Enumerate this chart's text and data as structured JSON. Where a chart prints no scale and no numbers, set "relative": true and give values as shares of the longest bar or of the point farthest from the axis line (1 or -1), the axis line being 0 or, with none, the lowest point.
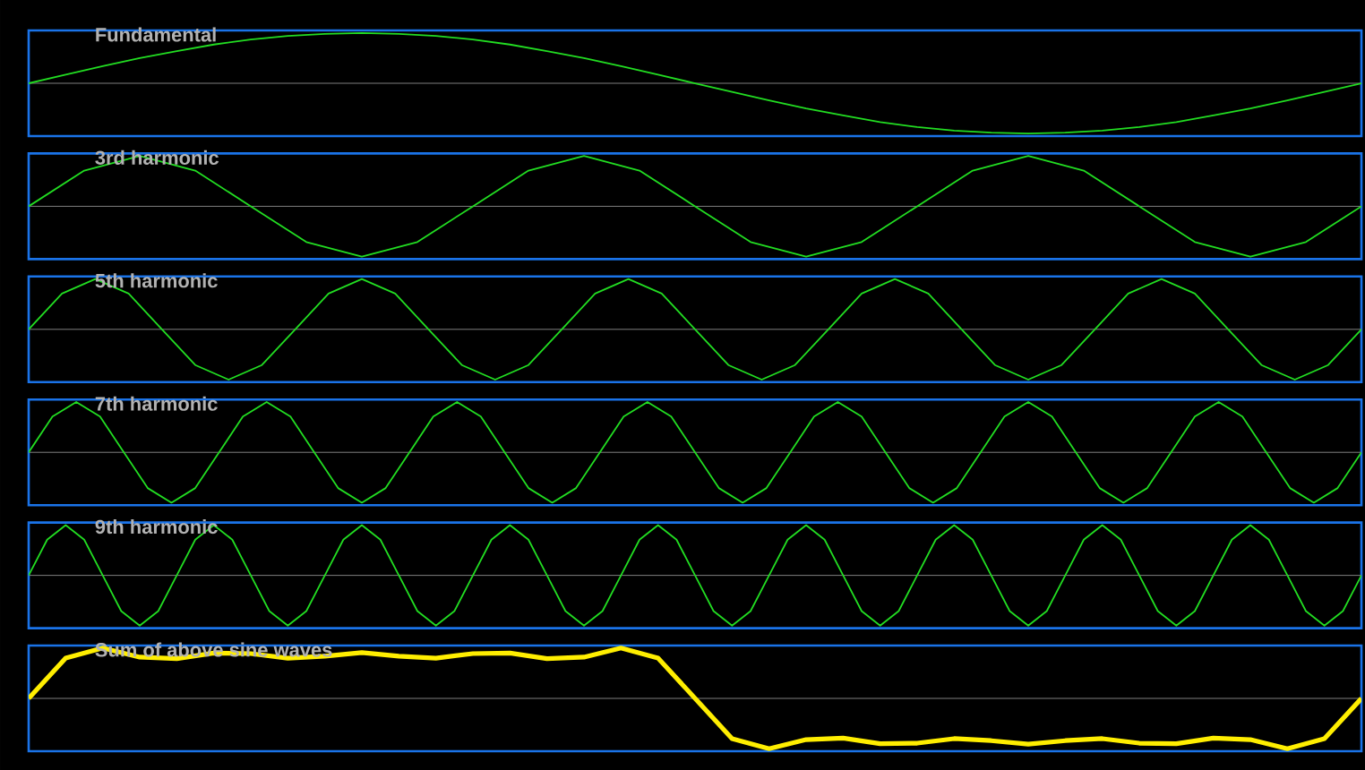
{
  "chart_data": [
    {
      "type": "line",
      "title": "Fundamental",
      "relative": true,
      "categories": [
        null,
        null,
        null,
        null,
        null,
        null,
        null,
        null,
        null,
        null,
        null,
        null,
        null,
        null,
        null,
        null,
        null,
        null,
        null,
        null,
        null,
        null,
        null,
        null,
        null,
        null,
        null,
        null,
        null,
        null,
        null,
        null,
        null,
        null,
        null,
        null,
        null
      ],
      "series": [
        {
          "color": "#22dd22",
          "values": [
            0,
            0.17,
            0.34,
            0.5,
            0.64,
            0.77,
            0.87,
            0.94,
            0.98,
            1,
            0.98,
            0.94,
            0.87,
            0.77,
            0.64,
            0.5,
            0.34,
            0.17,
            0,
            -0.17,
            -0.34,
            -0.5,
            -0.64,
            -0.77,
            -0.87,
            -0.94,
            -0.98,
            -1,
            -0.98,
            -0.94,
            -0.87,
            -0.77,
            -0.64,
            -0.5,
            -0.34,
            -0.17,
            0
          ]
        }
      ]
    },
    {
      "type": "line",
      "title": "3rd harmonic",
      "relative": true,
      "categories": [
        null,
        null,
        null,
        null,
        null,
        null,
        null,
        null,
        null,
        null,
        null,
        null,
        null,
        null,
        null,
        null,
        null,
        null,
        null,
        null,
        null,
        null,
        null,
        null,
        null
      ],
      "series": [
        {
          "color": "#22dd22",
          "values": [
            0,
            0.71,
            1,
            0.71,
            0,
            -0.71,
            -1,
            -0.71,
            0,
            0.71,
            1,
            0.71,
            0,
            -0.71,
            -1,
            -0.71,
            0,
            0.71,
            1,
            0.71,
            0,
            -0.71,
            -1,
            -0.71,
            0
          ]
        }
      ]
    },
    {
      "type": "line",
      "title": "5th harmonic",
      "relative": true,
      "categories": [
        null,
        null,
        null,
        null,
        null,
        null,
        null,
        null,
        null,
        null,
        null,
        null,
        null,
        null,
        null,
        null,
        null,
        null,
        null,
        null,
        null,
        null,
        null,
        null,
        null,
        null,
        null,
        null,
        null,
        null,
        null,
        null,
        null,
        null,
        null,
        null,
        null,
        null,
        null,
        null,
        null
      ],
      "series": [
        {
          "color": "#22dd22",
          "values": [
            0,
            0.71,
            1,
            0.71,
            0,
            -0.71,
            -1,
            -0.71,
            0,
            0.71,
            1,
            0.71,
            0,
            -0.71,
            -1,
            -0.71,
            0,
            0.71,
            1,
            0.71,
            0,
            -0.71,
            -1,
            -0.71,
            0,
            0.71,
            1,
            0.71,
            0,
            -0.71,
            -1,
            -0.71,
            0,
            0.71,
            1,
            0.71,
            0,
            -0.71,
            -1,
            -0.71,
            0
          ]
        }
      ]
    },
    {
      "type": "line",
      "title": "7th harmonic",
      "relative": true,
      "categories": [
        null,
        null,
        null,
        null,
        null,
        null,
        null,
        null,
        null,
        null,
        null,
        null,
        null,
        null,
        null,
        null,
        null,
        null,
        null,
        null,
        null,
        null,
        null,
        null,
        null,
        null,
        null,
        null,
        null,
        null,
        null,
        null,
        null,
        null,
        null,
        null,
        null,
        null,
        null,
        null,
        null,
        null,
        null,
        null,
        null,
        null,
        null,
        null,
        null,
        null,
        null,
        null,
        null,
        null,
        null,
        null,
        null
      ],
      "series": [
        {
          "color": "#22dd22",
          "values": [
            0,
            0.71,
            1,
            0.71,
            0,
            -0.71,
            -1,
            -0.71,
            0,
            0.71,
            1,
            0.71,
            0,
            -0.71,
            -1,
            -0.71,
            0,
            0.71,
            1,
            0.71,
            0,
            -0.71,
            -1,
            -0.71,
            0,
            0.71,
            1,
            0.71,
            0,
            -0.71,
            -1,
            -0.71,
            0,
            0.71,
            1,
            0.71,
            0,
            -0.71,
            -1,
            -0.71,
            0,
            0.71,
            1,
            0.71,
            0,
            -0.71,
            -1,
            -0.71,
            0,
            0.71,
            1,
            0.71,
            0,
            -0.71,
            -1,
            -0.71,
            0
          ]
        }
      ]
    },
    {
      "type": "line",
      "title": "9th harmonic",
      "relative": true,
      "categories": [
        null,
        null,
        null,
        null,
        null,
        null,
        null,
        null,
        null,
        null,
        null,
        null,
        null,
        null,
        null,
        null,
        null,
        null,
        null,
        null,
        null,
        null,
        null,
        null,
        null,
        null,
        null,
        null,
        null,
        null,
        null,
        null,
        null,
        null,
        null,
        null,
        null,
        null,
        null,
        null,
        null,
        null,
        null,
        null,
        null,
        null,
        null,
        null,
        null,
        null,
        null,
        null,
        null,
        null,
        null,
        null,
        null,
        null,
        null,
        null,
        null,
        null,
        null,
        null,
        null,
        null,
        null,
        null,
        null,
        null,
        null,
        null,
        null
      ],
      "series": [
        {
          "color": "#22dd22",
          "values": [
            0,
            0.71,
            1,
            0.71,
            0,
            -0.71,
            -1,
            -0.71,
            0,
            0.71,
            1,
            0.71,
            0,
            -0.71,
            -1,
            -0.71,
            0,
            0.71,
            1,
            0.71,
            0,
            -0.71,
            -1,
            -0.71,
            0,
            0.71,
            1,
            0.71,
            0,
            -0.71,
            -1,
            -0.71,
            0,
            0.71,
            1,
            0.71,
            0,
            -0.71,
            -1,
            -0.71,
            0,
            0.71,
            1,
            0.71,
            0,
            -0.71,
            -1,
            -0.71,
            0,
            0.71,
            1,
            0.71,
            0,
            -0.71,
            -1,
            -0.71,
            0,
            0.71,
            1,
            0.71,
            0,
            -0.71,
            -1,
            -0.71,
            0,
            0.71,
            1,
            0.71,
            0,
            -0.71,
            -1,
            -0.71,
            0
          ]
        }
      ]
    },
    {
      "type": "line",
      "title": "Sum of above sine waves",
      "relative": true,
      "categories": [
        null,
        null,
        null,
        null,
        null,
        null,
        null,
        null,
        null,
        null,
        null,
        null,
        null,
        null,
        null,
        null,
        null,
        null,
        null,
        null,
        null,
        null,
        null,
        null,
        null,
        null,
        null,
        null,
        null,
        null,
        null,
        null,
        null,
        null,
        null,
        null,
        null
      ],
      "series": [
        {
          "color": "#ffee00",
          "values": [
            0,
            0.8,
            1,
            0.82,
            0.79,
            0.9,
            0.89,
            0.8,
            0.84,
            0.91,
            0.84,
            0.8,
            0.89,
            0.9,
            0.79,
            0.82,
            1,
            0.8,
            0,
            -0.8,
            -1,
            -0.82,
            -0.79,
            -0.9,
            -0.89,
            -0.8,
            -0.84,
            -0.91,
            -0.84,
            -0.8,
            -0.89,
            -0.9,
            -0.79,
            -0.82,
            -1,
            -0.8,
            0
          ]
        }
      ]
    }
  ]
}
